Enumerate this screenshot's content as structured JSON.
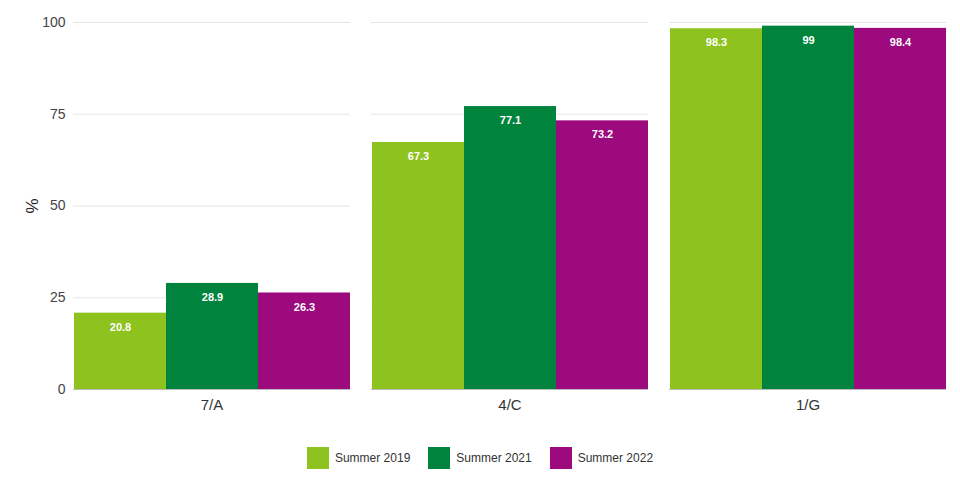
{
  "chart_data": {
    "type": "bar",
    "categories": [
      "7/A",
      "4/C",
      "1/G"
    ],
    "series": [
      {
        "name": "Summer 2019",
        "color": "#8dc21f",
        "values": [
          20.8,
          67.3,
          98.3
        ]
      },
      {
        "name": "Summer 2021",
        "color": "#00843d",
        "values": [
          28.9,
          77.1,
          99
        ]
      },
      {
        "name": "Summer 2022",
        "color": "#9c0a7d",
        "values": [
          26.3,
          73.2,
          98.4
        ]
      }
    ],
    "y_label": "%",
    "ylim": [
      0,
      100
    ],
    "yticks": [
      0,
      25,
      50,
      75,
      100
    ],
    "grid": true,
    "legend": "bottom",
    "data_labels": true
  }
}
